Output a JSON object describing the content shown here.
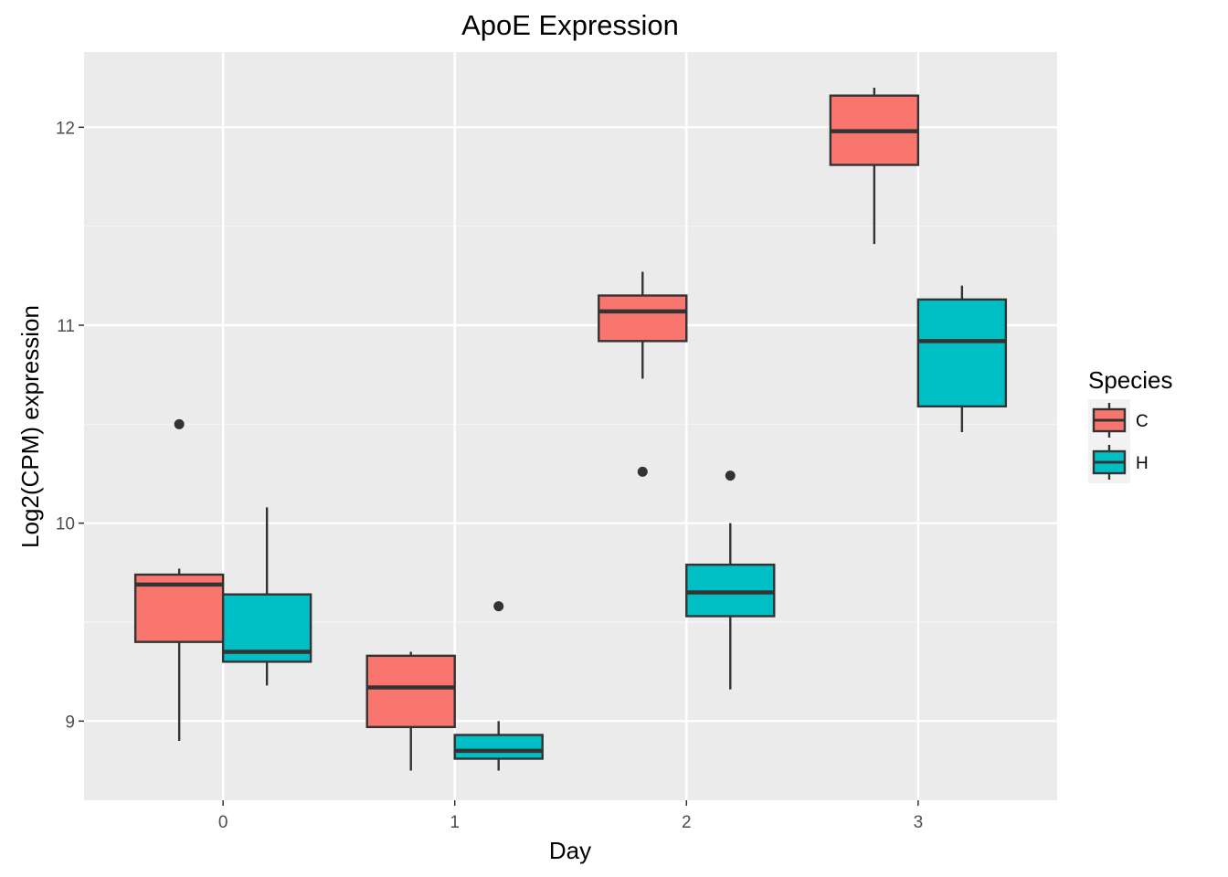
{
  "chart_data": {
    "type": "boxplot",
    "title": "ApoE Expression",
    "xlabel": "Day",
    "ylabel": "Log2(CPM) expression",
    "categories": [
      "0",
      "1",
      "2",
      "3"
    ],
    "yticks": [
      9,
      10,
      11,
      12
    ],
    "ylim": [
      8.6,
      12.38
    ],
    "grid": true,
    "legend": {
      "title": "Species",
      "position": "right",
      "entries": [
        {
          "label": "C",
          "color": "#F8766D"
        },
        {
          "label": "H",
          "color": "#00BFC4"
        }
      ]
    },
    "series": [
      {
        "name": "C",
        "color": "#F8766D",
        "boxes": [
          {
            "day": "0",
            "whisker_low": 8.9,
            "q1": 9.4,
            "median": 9.69,
            "q3": 9.74,
            "whisker_high": 9.77,
            "outliers": [
              10.5
            ]
          },
          {
            "day": "1",
            "whisker_low": 8.75,
            "q1": 8.97,
            "median": 9.17,
            "q3": 9.33,
            "whisker_high": 9.35,
            "outliers": []
          },
          {
            "day": "2",
            "whisker_low": 10.73,
            "q1": 10.92,
            "median": 11.07,
            "q3": 11.15,
            "whisker_high": 11.27,
            "outliers": [
              10.26
            ]
          },
          {
            "day": "3",
            "whisker_low": 11.41,
            "q1": 11.81,
            "median": 11.98,
            "q3": 12.16,
            "whisker_high": 12.2,
            "outliers": []
          }
        ]
      },
      {
        "name": "H",
        "color": "#00BFC4",
        "boxes": [
          {
            "day": "0",
            "whisker_low": 9.18,
            "q1": 9.3,
            "median": 9.35,
            "q3": 9.64,
            "whisker_high": 10.08,
            "outliers": []
          },
          {
            "day": "1",
            "whisker_low": 8.75,
            "q1": 8.81,
            "median": 8.85,
            "q3": 8.93,
            "whisker_high": 9.0,
            "outliers": [
              9.58
            ]
          },
          {
            "day": "2",
            "whisker_low": 9.16,
            "q1": 9.53,
            "median": 9.65,
            "q3": 9.79,
            "whisker_high": 10.0,
            "outliers": [
              10.24
            ]
          },
          {
            "day": "3",
            "whisker_low": 10.46,
            "q1": 10.59,
            "median": 10.92,
            "q3": 11.13,
            "whisker_high": 11.2,
            "outliers": []
          }
        ]
      }
    ]
  }
}
